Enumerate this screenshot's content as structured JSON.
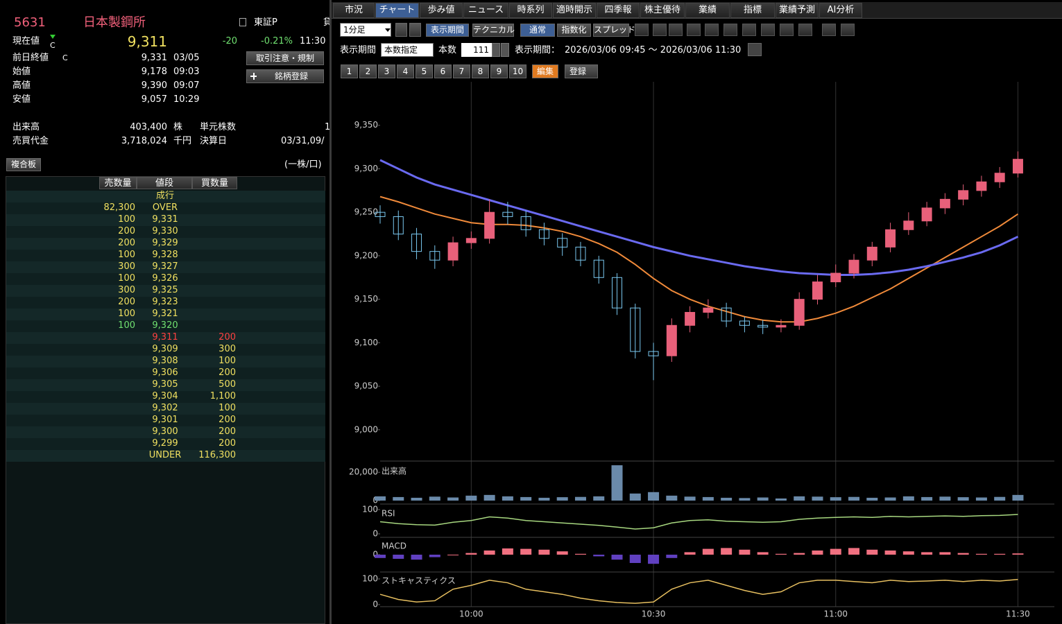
{
  "left": {
    "code": "5631",
    "name": "日本製鋼所",
    "market": "東証P",
    "market_next": "貸",
    "quote": {
      "label": "現在値",
      "flag": "C",
      "price": "9,311",
      "change": "-20",
      "change_pct": "-0.21%",
      "time": "11:30"
    },
    "stats": [
      {
        "label": "前日終値",
        "flag": "C",
        "value": "9,331",
        "time": "03/05"
      },
      {
        "label": "始値",
        "value": "9,178",
        "time": "09:03"
      },
      {
        "label": "高値",
        "value": "9,390",
        "time": "09:07"
      },
      {
        "label": "安値",
        "value": "9,057",
        "time": "10:29"
      }
    ],
    "buttons": [
      "取引注意・規制",
      "銘柄登録"
    ],
    "volume": {
      "label": "出来高",
      "value": "403,400",
      "unit": "株"
    },
    "unit_shares": {
      "label": "単元株数",
      "value": "1"
    },
    "turnover": {
      "label": "売買代金",
      "value": "3,718,024",
      "unit": "千円"
    },
    "settlement": {
      "label": "決算日",
      "value": "03/31,09/"
    },
    "board_button": "複合板",
    "board_unit": "(一株/口)",
    "table": {
      "header": [
        "売数量",
        "値段",
        "買数量"
      ],
      "rows": [
        [
          null,
          "成行",
          null
        ],
        [
          "82,300",
          "OVER",
          null
        ],
        [
          "100",
          "9,331",
          null
        ],
        [
          "200",
          "9,330",
          null
        ],
        [
          "200",
          "9,329",
          null
        ],
        [
          "100",
          "9,328",
          null
        ],
        [
          "300",
          "9,327",
          null
        ],
        [
          "100",
          "9,326",
          null
        ],
        [
          "300",
          "9,325",
          null
        ],
        [
          "200",
          "9,323",
          null
        ],
        [
          "100",
          "9,321",
          null
        ],
        [
          "100",
          "9,320",
          null
        ],
        [
          null,
          "9,311",
          "200"
        ],
        [
          null,
          "9,309",
          "300"
        ],
        [
          null,
          "9,308",
          "100"
        ],
        [
          null,
          "9,306",
          "200"
        ],
        [
          null,
          "9,305",
          "500"
        ],
        [
          null,
          "9,304",
          "1,100"
        ],
        [
          null,
          "9,302",
          "100"
        ],
        [
          null,
          "9,301",
          "200"
        ],
        [
          null,
          "9,300",
          "200"
        ],
        [
          null,
          "9,299",
          "200"
        ],
        [
          null,
          "UNDER",
          "116,300"
        ]
      ]
    }
  },
  "right": {
    "tabs": [
      "市況",
      "チャート",
      "歩み値",
      "ニュース",
      "時系列",
      "適時開示",
      "四季報",
      "株主優待",
      "業績",
      "指標",
      "業績予測",
      "AI分析"
    ],
    "active_tab": 1,
    "toolbar": {
      "interval": "1分足",
      "period_button": "表示期間",
      "technical": "テクニカル",
      "modes": [
        "通常",
        "指数化",
        "スプレッド"
      ]
    },
    "period": {
      "label": "表示期間",
      "mode": "本数指定",
      "count_label": "本数",
      "count": "111",
      "range_label": "表示期間：",
      "range": "2026/03/06 09:45 ～ 2026/03/06 11:30"
    },
    "presets": [
      "1",
      "2",
      "3",
      "4",
      "5",
      "6",
      "7",
      "8",
      "9",
      "10"
    ],
    "edit": "編集",
    "register": "登録"
  },
  "chart_data": {
    "type": "candlestick",
    "x": [
      585,
      588,
      591,
      594,
      597,
      600,
      603,
      606,
      609,
      612,
      615,
      618,
      621,
      624,
      627,
      630,
      633,
      636,
      639,
      642,
      645,
      648,
      651,
      654,
      657,
      660,
      663,
      666,
      669,
      672,
      675,
      678,
      681,
      684,
      687,
      690
    ],
    "open": [
      9250,
      9245,
      9225,
      9205,
      9195,
      9215,
      9220,
      9250,
      9245,
      9230,
      9220,
      9210,
      9195,
      9175,
      9140,
      9090,
      9085,
      9120,
      9135,
      9140,
      9125,
      9120,
      9118,
      9120,
      9150,
      9170,
      9180,
      9195,
      9210,
      9230,
      9240,
      9255,
      9265,
      9275,
      9285,
      9295
    ],
    "high": [
      9258,
      9252,
      9232,
      9212,
      9222,
      9228,
      9265,
      9262,
      9252,
      9238,
      9226,
      9216,
      9200,
      9180,
      9145,
      9100,
      9128,
      9142,
      9150,
      9146,
      9130,
      9126,
      9127,
      9158,
      9178,
      9190,
      9202,
      9216,
      9238,
      9250,
      9262,
      9272,
      9282,
      9292,
      9302,
      9320
    ],
    "low": [
      9237,
      9218,
      9196,
      9185,
      9188,
      9208,
      9214,
      9236,
      9222,
      9212,
      9200,
      9188,
      9168,
      9132,
      9082,
      9057,
      9078,
      9112,
      9128,
      9118,
      9112,
      9110,
      9112,
      9115,
      9144,
      9164,
      9174,
      9188,
      9204,
      9224,
      9234,
      9248,
      9258,
      9268,
      9278,
      9290
    ],
    "close": [
      9245,
      9225,
      9205,
      9195,
      9215,
      9220,
      9250,
      9245,
      9230,
      9220,
      9210,
      9195,
      9175,
      9140,
      9090,
      9085,
      9120,
      9135,
      9140,
      9125,
      9120,
      9118,
      9120,
      9150,
      9170,
      9180,
      9195,
      9210,
      9230,
      9240,
      9255,
      9265,
      9275,
      9285,
      9295,
      9311
    ],
    "up_color": "#e8607a",
    "down_color": "#7ac8f0",
    "lines": [
      {
        "color": "#f08a3a",
        "values": [
          9268,
          9262,
          9255,
          9248,
          9243,
          9238,
          9236,
          9236,
          9235,
          9232,
          9228,
          9222,
          9214,
          9204,
          9190,
          9174,
          9160,
          9150,
          9142,
          9136,
          9130,
          9126,
          9124,
          9124,
          9128,
          9134,
          9142,
          9152,
          9162,
          9174,
          9186,
          9198,
          9210,
          9222,
          9234,
          9248
        ]
      },
      {
        "color": "#6a6af0",
        "values": [
          9310,
          9300,
          9290,
          9282,
          9276,
          9270,
          9264,
          9258,
          9252,
          9246,
          9240,
          9234,
          9228,
          9222,
          9216,
          9210,
          9205,
          9200,
          9196,
          9192,
          9188,
          9185,
          9182,
          9180,
          9179,
          9178,
          9178,
          9179,
          9181,
          9184,
          9188,
          9193,
          9198,
          9204,
          9212,
          9222
        ]
      }
    ],
    "xlim": [
      585,
      696
    ],
    "xticks": [
      {
        "value": 600,
        "label": "10:00"
      },
      {
        "value": 630,
        "label": "10:30"
      },
      {
        "value": 660,
        "label": "11:00"
      },
      {
        "value": 690,
        "label": "11:30"
      }
    ],
    "ylim": [
      8964,
      9400
    ],
    "yticks": [
      {
        "value": 9000,
        "label": "9,000"
      },
      {
        "value": 9050,
        "label": "9,050"
      },
      {
        "value": 9100,
        "label": "9,100"
      },
      {
        "value": 9150,
        "label": "9,150"
      },
      {
        "value": 9200,
        "label": "9,200"
      },
      {
        "value": 9250,
        "label": "9,250"
      },
      {
        "value": 9300,
        "label": "9,300"
      },
      {
        "value": 9350,
        "label": "9,350"
      }
    ],
    "grid": true,
    "panels": [
      {
        "type": "bar",
        "label": "出来高",
        "color": "#6a8aaa",
        "ylim": [
          0,
          26000
        ],
        "yticks": [
          0,
          {
            "value": 20000,
            "label": "20,000"
          }
        ],
        "values": [
          3000,
          2500,
          2000,
          2800,
          2200,
          3500,
          4000,
          3000,
          2500,
          2000,
          2400,
          2600,
          3000,
          25000,
          5000,
          6000,
          3500,
          2800,
          2500,
          2000,
          1800,
          2200,
          1500,
          3000,
          2800,
          2400,
          2600,
          2000,
          2200,
          3000,
          2500,
          2800,
          2400,
          2200,
          2600,
          4000
        ]
      },
      {
        "type": "line",
        "label": "RSI",
        "color": "#a8d880",
        "ylim": [
          0,
          100
        ],
        "yticks": [
          0,
          100
        ],
        "values": [
          50,
          42,
          38,
          36,
          48,
          55,
          70,
          65,
          55,
          50,
          45,
          40,
          35,
          28,
          20,
          25,
          45,
          55,
          58,
          52,
          50,
          48,
          50,
          60,
          65,
          68,
          70,
          68,
          72,
          70,
          72,
          74,
          72,
          75,
          76,
          80
        ]
      },
      {
        "type": "bar",
        "label": "MACD",
        "pos_color": "#f07080",
        "neg_color": "#6040c0",
        "ylim": [
          -25,
          25
        ],
        "yticks": [
          0
        ],
        "values": [
          -8,
          -10,
          -12,
          -6,
          0,
          4,
          10,
          15,
          14,
          12,
          8,
          2,
          -4,
          -12,
          -20,
          -22,
          -8,
          6,
          14,
          16,
          12,
          6,
          2,
          4,
          10,
          14,
          16,
          12,
          10,
          8,
          6,
          6,
          4,
          2,
          2,
          3
        ]
      },
      {
        "type": "line",
        "label": "ストキャスティクス",
        "color": "#e8c060",
        "ylim": [
          0,
          100
        ],
        "yticks": [
          0,
          100
        ],
        "values": [
          40,
          20,
          10,
          15,
          60,
          75,
          95,
          85,
          60,
          50,
          40,
          25,
          15,
          8,
          5,
          10,
          60,
          85,
          95,
          75,
          55,
          40,
          50,
          85,
          95,
          95,
          90,
          85,
          95,
          90,
          92,
          95,
          90,
          95,
          92,
          98
        ]
      }
    ]
  }
}
